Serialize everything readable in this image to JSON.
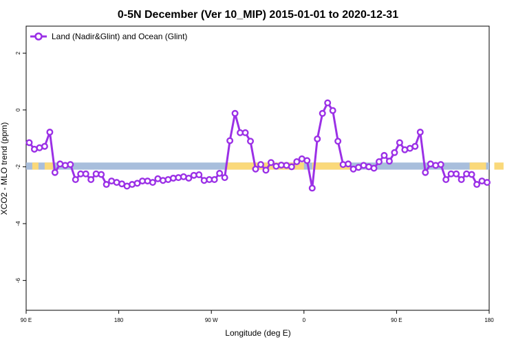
{
  "chart_data": {
    "type": "line",
    "title": "0-5N December (Ver 10_MIP)   2015-01-01 to 2020-12-31",
    "xlabel": "Longitude (deg E)",
    "ylabel": "XCO2 - MLO trend (ppm)",
    "x_ticks": [
      {
        "value": 90,
        "label": "90 E"
      },
      {
        "value": 180,
        "label": "180"
      },
      {
        "value": 270,
        "label": "90 W"
      },
      {
        "value": 360,
        "label": "0"
      },
      {
        "value": 450,
        "label": "90 E"
      },
      {
        "value": 540,
        "label": "180"
      }
    ],
    "y_ticks": [
      2,
      0,
      -2,
      -4,
      -6
    ],
    "xlim": [
      90,
      540
    ],
    "ylim": [
      -7.05,
      2.95
    ],
    "grid": false,
    "legend_position": "top-left",
    "band": {
      "y_range": [
        -2.1,
        -1.85
      ],
      "ocean_color": "#a8bedc",
      "land_color": "#fad97a",
      "land_segments": [
        [
          96,
          102
        ],
        [
          108,
          116
        ],
        [
          284,
          360
        ],
        [
          368,
          405
        ],
        [
          521,
          537
        ],
        [
          545,
          554
        ]
      ]
    },
    "series": [
      {
        "name": "Land (Nadir&Glint) and Ocean (Glint)",
        "color": "#9b30e6",
        "x": [
          93,
          98,
          103,
          108,
          113,
          118,
          123,
          128,
          133,
          138,
          143,
          148,
          153,
          158,
          163,
          168,
          173,
          178,
          183,
          188,
          193,
          198,
          203,
          208,
          213,
          218,
          223,
          228,
          233,
          238,
          243,
          248,
          253,
          258,
          263,
          268,
          273,
          278,
          283,
          288,
          293,
          298,
          303,
          308,
          313,
          318,
          323,
          328,
          333,
          338,
          343,
          348,
          353,
          358,
          363,
          368,
          373,
          378,
          383,
          388,
          393,
          398,
          403,
          408,
          413,
          418,
          423,
          428,
          433,
          438,
          443,
          448,
          453,
          458,
          463,
          468,
          473,
          478,
          483,
          488,
          493,
          498,
          503,
          508,
          513,
          518,
          523,
          528,
          533,
          538
        ],
        "y": [
          -1.15,
          -1.38,
          -1.33,
          -1.28,
          -0.78,
          -2.2,
          -1.9,
          -1.95,
          -1.92,
          -2.45,
          -2.25,
          -2.25,
          -2.45,
          -2.25,
          -2.27,
          -2.62,
          -2.5,
          -2.55,
          -2.6,
          -2.68,
          -2.62,
          -2.58,
          -2.5,
          -2.5,
          -2.55,
          -2.42,
          -2.48,
          -2.45,
          -2.4,
          -2.38,
          -2.35,
          -2.4,
          -2.3,
          -2.28,
          -2.48,
          -2.45,
          -2.45,
          -2.23,
          -2.38,
          -1.08,
          -0.12,
          -0.8,
          -0.8,
          -1.1,
          -2.08,
          -1.92,
          -2.12,
          -1.85,
          -1.98,
          -1.94,
          -1.95,
          -2.0,
          -1.82,
          -1.72,
          -1.78,
          -2.75,
          -1.02,
          -0.12,
          0.25,
          -0.02,
          -1.1,
          -1.92,
          -1.9,
          -2.08,
          -2.02,
          -1.95,
          -2.0,
          -2.05,
          -1.82,
          -1.6,
          -1.8,
          -1.5,
          -1.15,
          -1.4,
          -1.35,
          -1.28,
          -0.78,
          -2.2,
          -1.9,
          -1.95,
          -1.92,
          -2.45,
          -2.25,
          -2.25,
          -2.45,
          -2.25,
          -2.27,
          -2.62,
          -2.5,
          -2.55
        ]
      }
    ]
  }
}
